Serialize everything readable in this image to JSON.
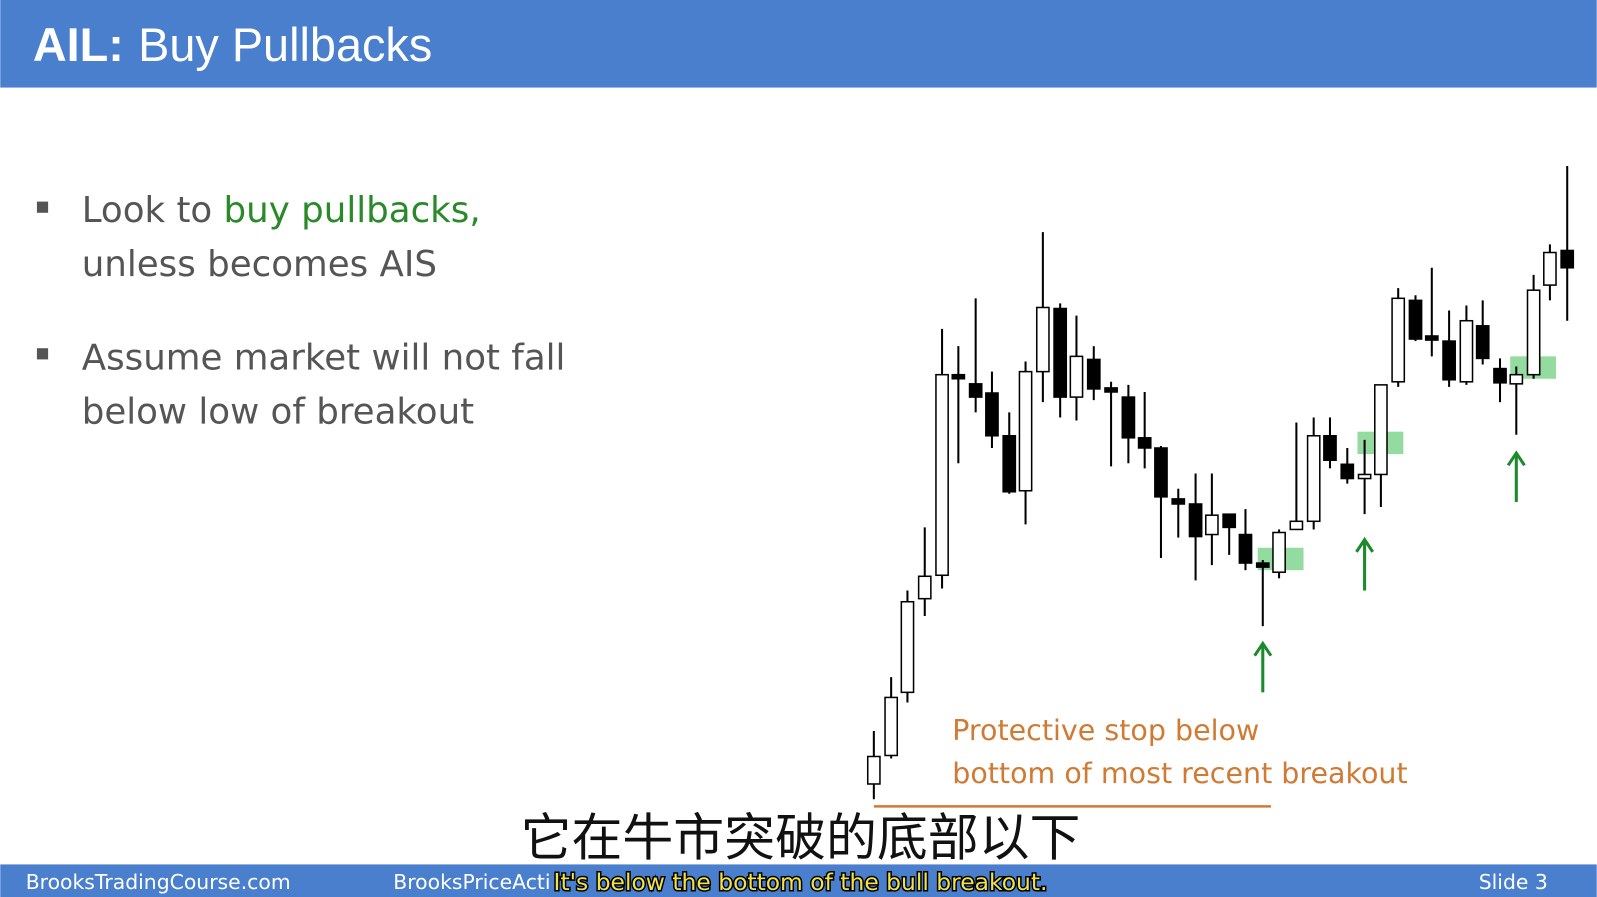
{
  "header": {
    "title_bold": "AIL:",
    "title_rest": "Buy Pullbacks"
  },
  "bullets": [
    {
      "lead": "Look to ",
      "highlight": "buy pullbacks,",
      "line2": "unless becomes AIS"
    },
    {
      "line1": "Assume market will not fall",
      "line2": "below low of breakout"
    }
  ],
  "annotation": {
    "line1": "Protective stop below",
    "line2": "bottom of most recent breakout"
  },
  "footer": {
    "left": "BrooksTradingCourse.com",
    "middle": "BrooksPriceActi",
    "slide": "Slide  3"
  },
  "subtitles": {
    "chinese": "它在牛市突破的底部以下",
    "english": "It's below the bottom of the bull breakout."
  }
}
